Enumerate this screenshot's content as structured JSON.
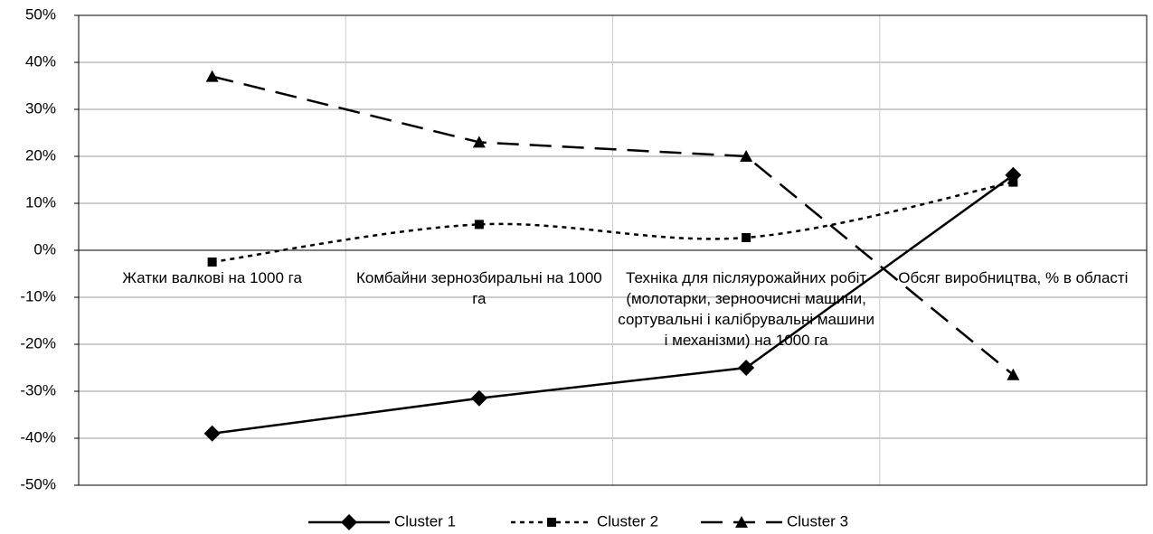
{
  "chart_data": {
    "type": "line",
    "categories": [
      "Жатки валкові на 1000 га",
      "Комбайни зернозбиральні на 1000 га",
      "Техніка для післяурожайних робіт (молотарки, зерноочисні машини, сортувальні і калібрувальні машини і механізми) на 1000 га",
      "Обсяг виробництва, % в області"
    ],
    "series": [
      {
        "name": "Cluster 1",
        "color": "#000000",
        "marker": "diamond",
        "dash": "solid",
        "values": [
          -39,
          -31.5,
          -25,
          16
        ]
      },
      {
        "name": "Cluster 2",
        "color": "#000000",
        "marker": "square",
        "dash": "short",
        "smooth": true,
        "values": [
          -2.5,
          5.5,
          2.7,
          14.5
        ]
      },
      {
        "name": "Cluster 3",
        "color": "#000000",
        "marker": "triangle",
        "dash": "long",
        "values": [
          37,
          23,
          20,
          -26.5
        ]
      }
    ],
    "ylim": [
      -50,
      50
    ],
    "yticks": [
      {
        "value": -50,
        "label": "-50%"
      },
      {
        "value": -40,
        "label": "-40%"
      },
      {
        "value": -30,
        "label": "-30%"
      },
      {
        "value": -20,
        "label": "-20%"
      },
      {
        "value": -10,
        "label": "-10%"
      },
      {
        "value": 0,
        "label": "0%"
      },
      {
        "value": 10,
        "label": "10%"
      },
      {
        "value": 20,
        "label": "20%"
      },
      {
        "value": 30,
        "label": "30%"
      },
      {
        "value": 40,
        "label": "40%"
      },
      {
        "value": 50,
        "label": "50%"
      }
    ],
    "grid": true,
    "legend": "bottom"
  }
}
